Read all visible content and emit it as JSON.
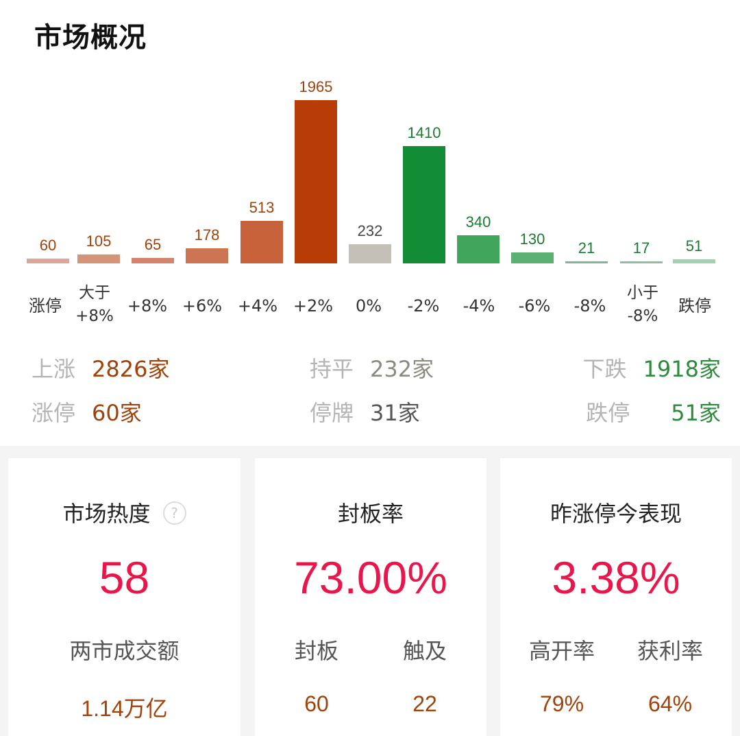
{
  "header": {
    "title": "市场概况"
  },
  "chart_data": {
    "type": "bar",
    "title": "市场概况",
    "categories": [
      "涨停",
      "大于 +8%",
      "+8%",
      "+6%",
      "+4%",
      "+2%",
      "0%",
      "-2%",
      "-4%",
      "-6%",
      "-8%",
      "小于 -8%",
      "跌停"
    ],
    "values": [
      60,
      105,
      65,
      178,
      513,
      1965,
      232,
      1410,
      340,
      130,
      21,
      17,
      51
    ],
    "colors": [
      "#dca797",
      "#d59377",
      "#d2856a",
      "#cd7552",
      "#c7613a",
      "#b83c06",
      "#c4c0b7",
      "#128d35",
      "#41a55c",
      "#5ab172",
      "#7fb795",
      "#93bca4",
      "#a4cfb2"
    ],
    "label_colors": [
      "#a0420a",
      "#a0420a",
      "#a0420a",
      "#a0420a",
      "#a0420a",
      "#a0420a",
      "#444444",
      "#1b7a32",
      "#1b7a32",
      "#1b7a32",
      "#1b7a32",
      "#1b7a32",
      "#1b7a32"
    ],
    "xlabel": "",
    "ylabel": "",
    "grid": false,
    "legend": "none"
  },
  "xaxis": {
    "labels": [
      {
        "l1": "涨停",
        "l2": ""
      },
      {
        "l1": "大于",
        "l2": "+8%"
      },
      {
        "l1": "+8%",
        "l2": ""
      },
      {
        "l1": "+6%",
        "l2": ""
      },
      {
        "l1": "+4%",
        "l2": ""
      },
      {
        "l1": "+2%",
        "l2": ""
      },
      {
        "l1": "0%",
        "l2": ""
      },
      {
        "l1": "-2%",
        "l2": ""
      },
      {
        "l1": "-4%",
        "l2": ""
      },
      {
        "l1": "-6%",
        "l2": ""
      },
      {
        "l1": "-8%",
        "l2": ""
      },
      {
        "l1": "小于",
        "l2": "-8%"
      },
      {
        "l1": "跌停",
        "l2": ""
      }
    ]
  },
  "bars": [
    {
      "v": "60"
    },
    {
      "v": "105"
    },
    {
      "v": "65"
    },
    {
      "v": "178"
    },
    {
      "v": "513"
    },
    {
      "v": "1965"
    },
    {
      "v": "232"
    },
    {
      "v": "1410"
    },
    {
      "v": "340"
    },
    {
      "v": "130"
    },
    {
      "v": "21"
    },
    {
      "v": "17"
    },
    {
      "v": "51"
    }
  ],
  "summary": {
    "rise": {
      "label": "上涨",
      "value": "2826家",
      "color": "#a0420a"
    },
    "flat": {
      "label": "持平",
      "value": "232家",
      "color": "#8d8a80"
    },
    "fall": {
      "label": "下跌",
      "value": "1918家",
      "color": "#2e8a3c"
    },
    "limit_up": {
      "label": "涨停",
      "value": "60家",
      "color": "#a0420a"
    },
    "suspended": {
      "label": "停牌",
      "value": "31家",
      "color": "#555555"
    },
    "limit_down": {
      "label": "跌停",
      "value": "51家",
      "color": "#2e8a3c"
    }
  },
  "cards": {
    "heat": {
      "title": "市场热度",
      "help_icon": "?",
      "value": "58",
      "sub_label": "两市成交额",
      "sub_value": "1.14万亿"
    },
    "seal": {
      "title": "封板率",
      "value": "73.00%",
      "left_label": "封板",
      "left_value": "60",
      "right_label": "触及",
      "right_value": "22"
    },
    "yesterday": {
      "title": "昨涨停今表现",
      "value": "3.38%",
      "left_label": "高开率",
      "left_value": "79%",
      "right_label": "获利率",
      "right_value": "64%"
    }
  }
}
